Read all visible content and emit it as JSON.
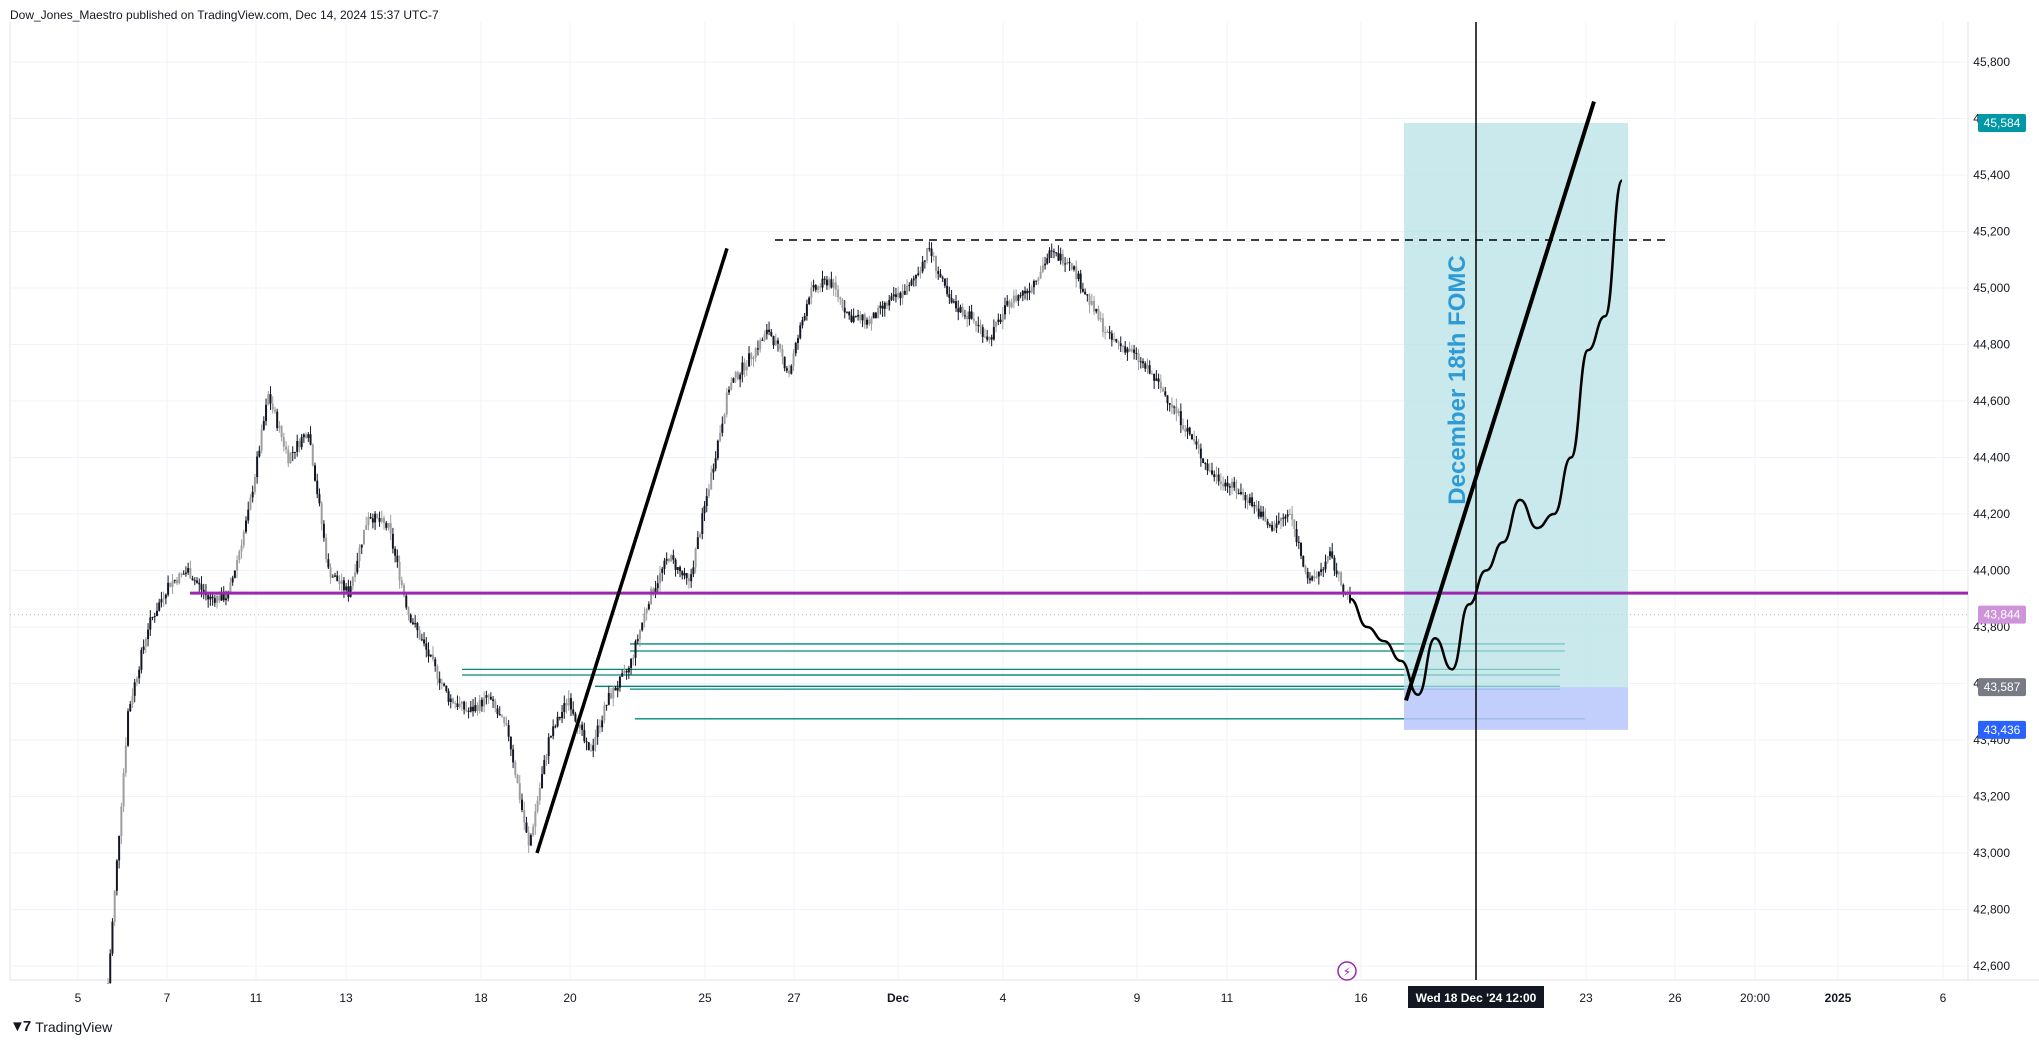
{
  "header": {
    "published_text": "Dow_Jones_Maestro published on TradingView.com, Dec 14, 2024 15:37 UTC-7"
  },
  "footer": {
    "brand": "TradingView",
    "logo_icon": "tradingview-logo-icon"
  },
  "colors": {
    "background": "#ffffff",
    "candle": "#131722",
    "candle_light": "#9e9e9e",
    "grid": "#f0f3fa",
    "trend_line": "#000000",
    "support_line": "#9c27b0",
    "zone_lines": "#00897b",
    "target_box": "#b2dfe4",
    "stop_box": "#b7c5fb",
    "event_text": "#2e9bd6",
    "badge_target": "#0097a7",
    "badge_last": "#ce93d8",
    "badge_gray": "#787b86",
    "badge_blue": "#2962ff"
  },
  "chart_data": {
    "type": "candlestick",
    "title": "",
    "y_axis": {
      "min": 42540,
      "max": 45900,
      "ticks": [
        42600,
        42800,
        43000,
        43200,
        43400,
        43600,
        43800,
        44000,
        44200,
        44400,
        44600,
        44800,
        45000,
        45200,
        45400,
        45600,
        45800
      ],
      "tick_labels": [
        "42,600",
        "42,800",
        "43,000",
        "43,200",
        "43,400",
        "43,600",
        "43,800",
        "44,000",
        "44,200",
        "44,400",
        "44,600",
        "44,800",
        "45,000",
        "45,200",
        "45,400",
        "45,600",
        "45,800"
      ]
    },
    "x_axis": {
      "tick_labels": [
        "5",
        "7",
        "11",
        "13",
        "18",
        "20",
        "25",
        "27",
        "Dec",
        "4",
        "9",
        "11",
        "16",
        "23",
        "26",
        "20:00",
        "2025",
        "6"
      ],
      "crosshair_label": "Wed 18 Dec '24   12:00"
    },
    "price_badges": [
      {
        "name": "target",
        "value": "45,584",
        "price": 45584
      },
      {
        "name": "last",
        "value": "43,844",
        "price": 43844
      },
      {
        "name": "entry",
        "value": "43,587",
        "price": 43587
      },
      {
        "name": "stop",
        "value": "43,436",
        "price": 43436
      }
    ],
    "price_path": [
      {
        "date": "Nov 5",
        "price": 42540
      },
      {
        "date": "Nov 6",
        "price": 43500
      },
      {
        "date": "Nov 6 late",
        "price": 43800
      },
      {
        "date": "Nov 7",
        "price": 43950
      },
      {
        "date": "Nov 8",
        "price": 44000
      },
      {
        "date": "Nov 8 late",
        "price": 43900
      },
      {
        "date": "Nov 10",
        "price": 43910
      },
      {
        "date": "Nov 11",
        "price": 44200
      },
      {
        "date": "Nov 11 high",
        "price": 44620
      },
      {
        "date": "Nov 12",
        "price": 44400
      },
      {
        "date": "Nov 12 late",
        "price": 44500
      },
      {
        "date": "Nov 13",
        "price": 44000
      },
      {
        "date": "Nov 13 low",
        "price": 43920
      },
      {
        "date": "Nov 14",
        "price": 44200
      },
      {
        "date": "Nov 14 late",
        "price": 44150
      },
      {
        "date": "Nov 15",
        "price": 43850
      },
      {
        "date": "Nov 16",
        "price": 43700
      },
      {
        "date": "Nov 17",
        "price": 43550
      },
      {
        "date": "Nov 18",
        "price": 43500
      },
      {
        "date": "Nov 18 late",
        "price": 43550
      },
      {
        "date": "Nov 19",
        "price": 43420
      },
      {
        "date": "Nov 19 low",
        "price": 43020
      },
      {
        "date": "Nov 20",
        "price": 43400
      },
      {
        "date": "Nov 20 late",
        "price": 43550
      },
      {
        "date": "Nov 21",
        "price": 43350
      },
      {
        "date": "Nov 21 late",
        "price": 43550
      },
      {
        "date": "Nov 22",
        "price": 43650
      },
      {
        "date": "Nov 22 late",
        "price": 43900
      },
      {
        "date": "Nov 23",
        "price": 44050
      },
      {
        "date": "Nov 24",
        "price": 43950
      },
      {
        "date": "Nov 24 late",
        "price": 44300
      },
      {
        "date": "Nov 25",
        "price": 44650
      },
      {
        "date": "Nov 25 late",
        "price": 44750
      },
      {
        "date": "Nov 26",
        "price": 44850
      },
      {
        "date": "Nov 26 late",
        "price": 44700
      },
      {
        "date": "Nov 26 end",
        "price": 44980
      },
      {
        "date": "Nov 27",
        "price": 45030
      },
      {
        "date": "Nov 27 late",
        "price": 44900
      },
      {
        "date": "Nov 28",
        "price": 44880
      },
      {
        "date": "Nov 29",
        "price": 44950
      },
      {
        "date": "Dec 1",
        "price": 45000
      },
      {
        "date": "Dec 1 late",
        "price": 45140
      },
      {
        "date": "Dec 2",
        "price": 44950
      },
      {
        "date": "Dec 3",
        "price": 44900
      },
      {
        "date": "Dec 3 late",
        "price": 44820
      },
      {
        "date": "Dec 4",
        "price": 44950
      },
      {
        "date": "Dec 5",
        "price": 45000
      },
      {
        "date": "Dec 5 late",
        "price": 45120
      },
      {
        "date": "Dec 6",
        "price": 45100
      },
      {
        "date": "Dec 6 late",
        "price": 44950
      },
      {
        "date": "Dec 7",
        "price": 44820
      },
      {
        "date": "Dec 8",
        "price": 44780
      },
      {
        "date": "Dec 8 late",
        "price": 44700
      },
      {
        "date": "Dec 9",
        "price": 44600
      },
      {
        "date": "Dec 10",
        "price": 44480
      },
      {
        "date": "Dec 10 late",
        "price": 44350
      },
      {
        "date": "Dec 11",
        "price": 44300
      },
      {
        "date": "Dec 11 late",
        "price": 44250
      },
      {
        "date": "Dec 12",
        "price": 44150
      },
      {
        "date": "Dec 12 late",
        "price": 44200
      },
      {
        "date": "Dec 13",
        "price": 43950
      },
      {
        "date": "Dec 13 late",
        "price": 44050
      },
      {
        "date": "Dec 14",
        "price": 43880
      }
    ],
    "forecast_path": [
      {
        "date": "Dec 14",
        "price": 43900
      },
      {
        "date": "Dec 15",
        "price": 43800
      },
      {
        "date": "Dec 15 late",
        "price": 43750
      },
      {
        "date": "Dec 16",
        "price": 43680
      },
      {
        "date": "Dec 16 low",
        "price": 43560
      },
      {
        "date": "Dec 17",
        "price": 43760
      },
      {
        "date": "Dec 17 late",
        "price": 43650
      },
      {
        "date": "Dec 18",
        "price": 43880
      },
      {
        "date": "Dec 18 late",
        "price": 44000
      },
      {
        "date": "Dec 19",
        "price": 44100
      },
      {
        "date": "Dec 19 late",
        "price": 44250
      },
      {
        "date": "Dec 20",
        "price": 44150
      },
      {
        "date": "Dec 20 late",
        "price": 44200
      },
      {
        "date": "Dec 21",
        "price": 44400
      },
      {
        "date": "Dec 22",
        "price": 44780
      },
      {
        "date": "Dec 23",
        "price": 44900
      },
      {
        "date": "Dec 24",
        "price": 45380
      }
    ],
    "annotations": {
      "event_label": "December 18th FOMC",
      "resistance_level": 45170,
      "support_level": 43920,
      "target_price": 45584,
      "entry_price": 43587,
      "stop_price": 43436,
      "zone_levels": [
        43740,
        43715,
        43650,
        43630,
        43590,
        43580,
        43475
      ],
      "left_trend_line": [
        {
          "price": 43000
        },
        {
          "price": 45140
        }
      ],
      "right_trend_line": [
        {
          "price": 43540
        },
        {
          "price": 45660
        }
      ]
    }
  }
}
